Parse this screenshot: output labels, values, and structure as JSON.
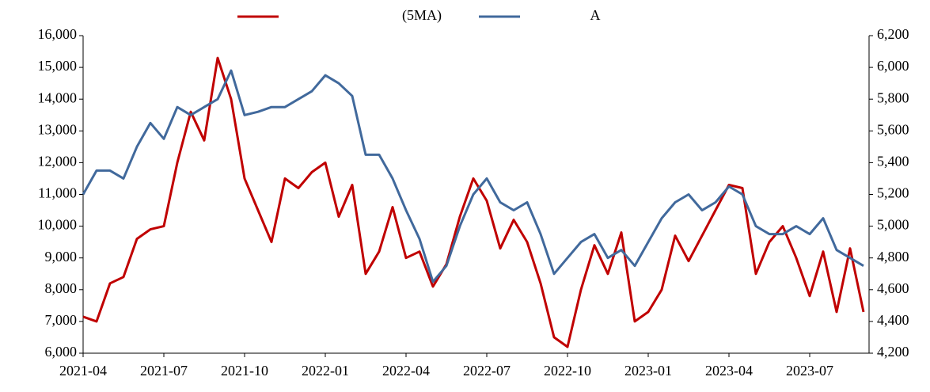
{
  "chart_data": {
    "type": "line",
    "categories": [
      "2021-04",
      null,
      null,
      null,
      null,
      null,
      "2021-07",
      null,
      null,
      null,
      null,
      null,
      "2021-10",
      null,
      null,
      null,
      null,
      null,
      "2022-01",
      null,
      null,
      null,
      null,
      null,
      "2022-04",
      null,
      null,
      null,
      null,
      null,
      "2022-07",
      null,
      null,
      null,
      null,
      null,
      "2022-10",
      null,
      null,
      null,
      null,
      null,
      "2023-01",
      null,
      null,
      null,
      null,
      null,
      "2023-04",
      null,
      null,
      null,
      null,
      null,
      "2023-07",
      null,
      null,
      null,
      null
    ],
    "series": [
      {
        "name": "(5MA)",
        "color": "#c00000",
        "axis": "y",
        "values": [
          7150,
          7000,
          8200,
          8400,
          9600,
          9900,
          10000,
          12000,
          13600,
          12700,
          15300,
          14000,
          11500,
          10500,
          9500,
          11500,
          11200,
          11700,
          12000,
          10300,
          11300,
          8500,
          9200,
          10600,
          9000,
          9200,
          8100,
          8800,
          10300,
          11500,
          10800,
          9300,
          10200,
          9500,
          8200,
          6500,
          6200,
          8000,
          9400,
          8500,
          9800,
          7000,
          7300,
          8000,
          9700,
          8900,
          9700,
          10500,
          11300,
          11200,
          8500,
          9500,
          10000,
          9000,
          7800,
          9200,
          7300,
          9300,
          7300
        ]
      },
      {
        "name": "A",
        "color": "#41699c",
        "axis": "y2",
        "values": [
          5200,
          5350,
          5350,
          5300,
          5500,
          5650,
          5550,
          5750,
          5700,
          5750,
          5800,
          5980,
          5700,
          5720,
          5750,
          5750,
          5800,
          5850,
          5950,
          5900,
          5820,
          5450,
          5450,
          5300,
          5100,
          4920,
          4650,
          4750,
          5000,
          5200,
          5300,
          5150,
          5100,
          5150,
          4950,
          4700,
          4800,
          4900,
          4950,
          4800,
          4850,
          4750,
          4900,
          5050,
          5150,
          5200,
          5100,
          5150,
          5250,
          5200,
          5000,
          4950,
          4950,
          5000,
          4950,
          5050,
          4850,
          4800,
          4750
        ]
      }
    ],
    "ylim": [
      6000,
      16000
    ],
    "yticks": [
      {
        "value": 6000,
        "label": "6,000"
      },
      {
        "value": 7000,
        "label": "7,000"
      },
      {
        "value": 8000,
        "label": "8,000"
      },
      {
        "value": 9000,
        "label": "9,000"
      },
      {
        "value": 10000,
        "label": "10,000"
      },
      {
        "value": 11000,
        "label": "11,000"
      },
      {
        "value": 12000,
        "label": "12,000"
      },
      {
        "value": 13000,
        "label": "13,000"
      },
      {
        "value": 14000,
        "label": "14,000"
      },
      {
        "value": 15000,
        "label": "15,000"
      },
      {
        "value": 16000,
        "label": "16,000"
      }
    ],
    "y2lim": [
      4200,
      6200
    ],
    "y2ticks": [
      {
        "value": 4200,
        "label": "4,200"
      },
      {
        "value": 4400,
        "label": "4,400"
      },
      {
        "value": 4600,
        "label": "4,600"
      },
      {
        "value": 4800,
        "label": "4,800"
      },
      {
        "value": 5000,
        "label": "5,000"
      },
      {
        "value": 5200,
        "label": "5,200"
      },
      {
        "value": 5400,
        "label": "5,400"
      },
      {
        "value": 5600,
        "label": "5,600"
      },
      {
        "value": 5800,
        "label": "5,800"
      },
      {
        "value": 6000,
        "label": "6,000"
      },
      {
        "value": 6200,
        "label": "6,200"
      }
    ],
    "legend": "top",
    "grid": false
  }
}
